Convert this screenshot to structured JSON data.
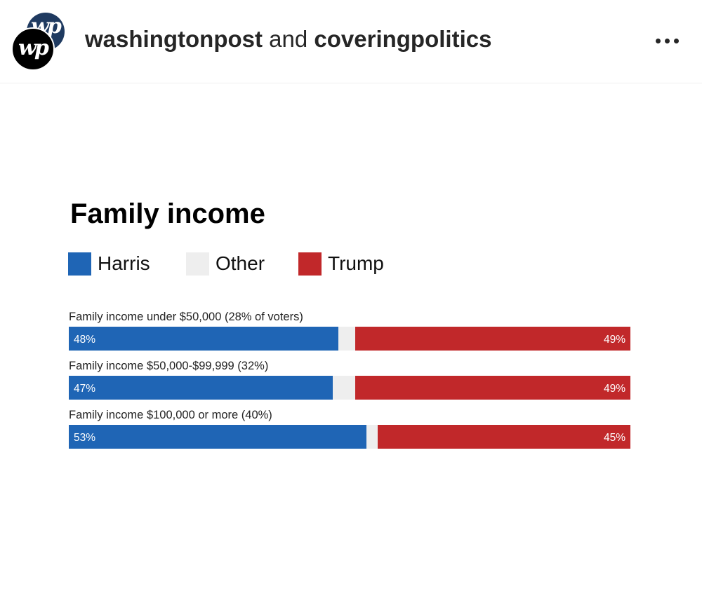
{
  "header": {
    "account_primary": "washingtonpost",
    "account_joiner": " and ",
    "account_secondary": "coveringpolitics",
    "avatar_monogram": "wp",
    "more_icon": "more-horizontal-icon"
  },
  "colors": {
    "harris": "#1f65b5",
    "other": "#eeeeee",
    "trump": "#c1282a"
  },
  "chart_data": {
    "type": "bar",
    "orientation": "horizontal",
    "stacked": true,
    "title": "Family income",
    "legend": [
      "Harris",
      "Other",
      "Trump"
    ],
    "categories": [
      "Family income under $50,000 (28% of voters)",
      "Family income $50,000-$99,999 (32%)",
      "Family income $100,000 or more (40%)"
    ],
    "series": [
      {
        "name": "Harris",
        "values": [
          48,
          47,
          53
        ],
        "labels": [
          "48%",
          "47%",
          "53%"
        ]
      },
      {
        "name": "Other",
        "values": [
          3,
          4,
          2
        ]
      },
      {
        "name": "Trump",
        "values": [
          49,
          49,
          45
        ],
        "labels": [
          "49%",
          "49%",
          "45%"
        ]
      }
    ],
    "xlim": [
      0,
      100
    ],
    "grid": false,
    "legend_position": "top-left"
  }
}
